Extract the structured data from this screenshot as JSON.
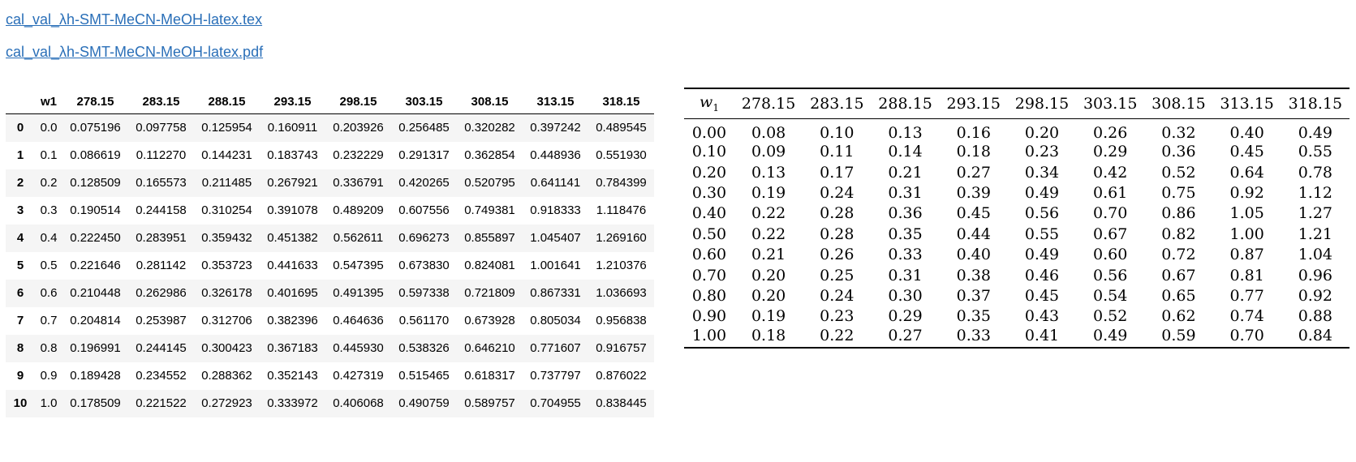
{
  "links": [
    {
      "label": "cal_val_λh-SMT-MeCN-MeOH-latex.tex"
    },
    {
      "label": "cal_val_λh-SMT-MeCN-MeOH-latex.pdf"
    }
  ],
  "dataframe": {
    "index_header": "",
    "w1_header": "w1",
    "columns": [
      "278.15",
      "283.15",
      "288.15",
      "293.15",
      "298.15",
      "303.15",
      "308.15",
      "313.15",
      "318.15"
    ],
    "rows": [
      {
        "index": "0",
        "w1": "0.0",
        "values": [
          "0.075196",
          "0.097758",
          "0.125954",
          "0.160911",
          "0.203926",
          "0.256485",
          "0.320282",
          "0.397242",
          "0.489545"
        ]
      },
      {
        "index": "1",
        "w1": "0.1",
        "values": [
          "0.086619",
          "0.112270",
          "0.144231",
          "0.183743",
          "0.232229",
          "0.291317",
          "0.362854",
          "0.448936",
          "0.551930"
        ]
      },
      {
        "index": "2",
        "w1": "0.2",
        "values": [
          "0.128509",
          "0.165573",
          "0.211485",
          "0.267921",
          "0.336791",
          "0.420265",
          "0.520795",
          "0.641141",
          "0.784399"
        ]
      },
      {
        "index": "3",
        "w1": "0.3",
        "values": [
          "0.190514",
          "0.244158",
          "0.310254",
          "0.391078",
          "0.489209",
          "0.607556",
          "0.749381",
          "0.918333",
          "1.118476"
        ]
      },
      {
        "index": "4",
        "w1": "0.4",
        "values": [
          "0.222450",
          "0.283951",
          "0.359432",
          "0.451382",
          "0.562611",
          "0.696273",
          "0.855897",
          "1.045407",
          "1.269160"
        ]
      },
      {
        "index": "5",
        "w1": "0.5",
        "values": [
          "0.221646",
          "0.281142",
          "0.353723",
          "0.441633",
          "0.547395",
          "0.673830",
          "0.824081",
          "1.001641",
          "1.210376"
        ]
      },
      {
        "index": "6",
        "w1": "0.6",
        "values": [
          "0.210448",
          "0.262986",
          "0.326178",
          "0.401695",
          "0.491395",
          "0.597338",
          "0.721809",
          "0.867331",
          "1.036693"
        ]
      },
      {
        "index": "7",
        "w1": "0.7",
        "values": [
          "0.204814",
          "0.253987",
          "0.312706",
          "0.382396",
          "0.464636",
          "0.561170",
          "0.673928",
          "0.805034",
          "0.956838"
        ]
      },
      {
        "index": "8",
        "w1": "0.8",
        "values": [
          "0.196991",
          "0.244145",
          "0.300423",
          "0.367183",
          "0.445930",
          "0.538326",
          "0.646210",
          "0.771607",
          "0.916757"
        ]
      },
      {
        "index": "9",
        "w1": "0.9",
        "values": [
          "0.189428",
          "0.234552",
          "0.288362",
          "0.352143",
          "0.427319",
          "0.515465",
          "0.618317",
          "0.737797",
          "0.876022"
        ]
      },
      {
        "index": "10",
        "w1": "1.0",
        "values": [
          "0.178509",
          "0.221522",
          "0.272923",
          "0.333972",
          "0.406068",
          "0.490759",
          "0.589757",
          "0.704955",
          "0.838445"
        ]
      }
    ]
  },
  "latex_table": {
    "w1_header_main": "w",
    "w1_header_sub": "1",
    "columns": [
      "278.15",
      "283.15",
      "288.15",
      "293.15",
      "298.15",
      "303.15",
      "308.15",
      "313.15",
      "318.15"
    ],
    "rows": [
      [
        "0.00",
        "0.08",
        "0.10",
        "0.13",
        "0.16",
        "0.20",
        "0.26",
        "0.32",
        "0.40",
        "0.49"
      ],
      [
        "0.10",
        "0.09",
        "0.11",
        "0.14",
        "0.18",
        "0.23",
        "0.29",
        "0.36",
        "0.45",
        "0.55"
      ],
      [
        "0.20",
        "0.13",
        "0.17",
        "0.21",
        "0.27",
        "0.34",
        "0.42",
        "0.52",
        "0.64",
        "0.78"
      ],
      [
        "0.30",
        "0.19",
        "0.24",
        "0.31",
        "0.39",
        "0.49",
        "0.61",
        "0.75",
        "0.92",
        "1.12"
      ],
      [
        "0.40",
        "0.22",
        "0.28",
        "0.36",
        "0.45",
        "0.56",
        "0.70",
        "0.86",
        "1.05",
        "1.27"
      ],
      [
        "0.50",
        "0.22",
        "0.28",
        "0.35",
        "0.44",
        "0.55",
        "0.67",
        "0.82",
        "1.00",
        "1.21"
      ],
      [
        "0.60",
        "0.21",
        "0.26",
        "0.33",
        "0.40",
        "0.49",
        "0.60",
        "0.72",
        "0.87",
        "1.04"
      ],
      [
        "0.70",
        "0.20",
        "0.25",
        "0.31",
        "0.38",
        "0.46",
        "0.56",
        "0.67",
        "0.81",
        "0.96"
      ],
      [
        "0.80",
        "0.20",
        "0.24",
        "0.30",
        "0.37",
        "0.45",
        "0.54",
        "0.65",
        "0.77",
        "0.92"
      ],
      [
        "0.90",
        "0.19",
        "0.23",
        "0.29",
        "0.35",
        "0.43",
        "0.52",
        "0.62",
        "0.74",
        "0.88"
      ],
      [
        "1.00",
        "0.18",
        "0.22",
        "0.27",
        "0.33",
        "0.41",
        "0.49",
        "0.59",
        "0.70",
        "0.84"
      ]
    ]
  }
}
